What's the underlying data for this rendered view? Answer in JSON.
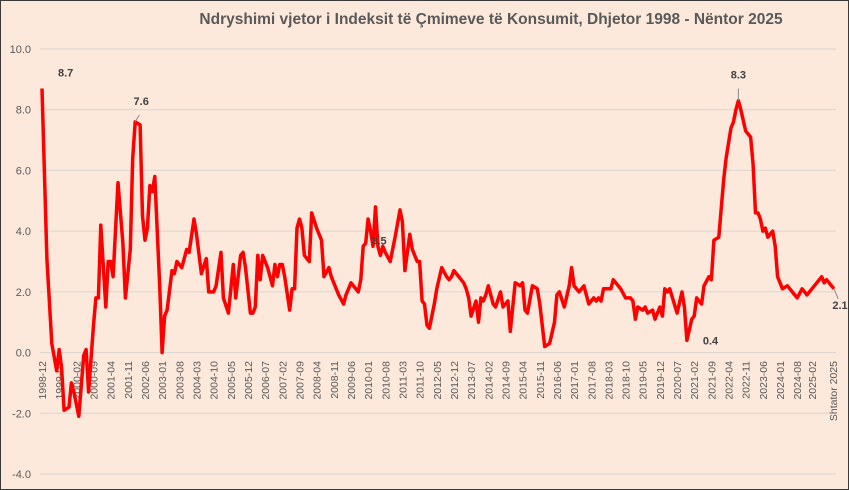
{
  "chart_data": {
    "type": "line",
    "title": "Ndryshimi vjetor i Indeksit të Çmimeve të Konsumit, Dhjetor 1998 - Nëntor 2025",
    "xlabel": "",
    "ylabel": "",
    "ylim": [
      -4.0,
      10.0
    ],
    "yticks": [
      "10.0",
      "8.0",
      "6.0",
      "4.0",
      "2.0",
      "0.0",
      "-2.0",
      "-4.0"
    ],
    "grid": "horizontal",
    "legend": "none",
    "line_color": "#ff0000",
    "background_color": "#fde9dc",
    "xticks": [
      "1998-12",
      "1999-07",
      "2000-02",
      "2000-09",
      "2001-04",
      "2001-11",
      "2002-06",
      "2003-01",
      "2003-08",
      "2004-03",
      "2004-10",
      "2005-05",
      "2005-12",
      "2006-07",
      "2007-02",
      "2007-09",
      "2008-04",
      "2008-11",
      "2009-06",
      "2010-01",
      "2010-08",
      "2011-03",
      "2011-10",
      "2012-05",
      "2012-12",
      "2013-07",
      "2014-02",
      "2014-09",
      "2015-04",
      "2015-11",
      "2016-06",
      "2017-01",
      "2017-08",
      "2018-03",
      "2018-10",
      "2019-05",
      "2019-12",
      "2020-07",
      "2021-02",
      "2021-09",
      "2022-04",
      "2022-11",
      "2023-06",
      "2024-01",
      "2024-08",
      "2025-02",
      "Shtator 2025"
    ],
    "series": [
      {
        "points": [
          [
            "1998-12",
            8.7
          ],
          [
            "1999-02",
            3.1
          ],
          [
            "1999-04",
            0.3
          ],
          [
            "1999-06",
            -0.6
          ],
          [
            "1999-07",
            0.1
          ],
          [
            "1999-08",
            -0.5
          ],
          [
            "1999-09",
            -1.9
          ],
          [
            "1999-11",
            -1.8
          ],
          [
            "1999-12",
            -1.0
          ],
          [
            "2000-01",
            -1.3
          ],
          [
            "2000-03",
            -2.1
          ],
          [
            "2000-05",
            -0.1
          ],
          [
            "2000-06",
            0.1
          ],
          [
            "2000-07",
            -1.3
          ],
          [
            "2000-09",
            0.9
          ],
          [
            "2000-10",
            1.8
          ],
          [
            "2000-11",
            1.8
          ],
          [
            "2000-12",
            4.2
          ],
          [
            "2001-02",
            1.5
          ],
          [
            "2001-03",
            3.0
          ],
          [
            "2001-04",
            3.0
          ],
          [
            "2001-05",
            2.5
          ],
          [
            "2001-07",
            5.6
          ],
          [
            "2001-09",
            3.6
          ],
          [
            "2001-10",
            1.8
          ],
          [
            "2001-12",
            3.4
          ],
          [
            "2002-01",
            6.4
          ],
          [
            "2002-02",
            7.6
          ],
          [
            "2002-04",
            7.5
          ],
          [
            "2002-05",
            4.5
          ],
          [
            "2002-06",
            3.7
          ],
          [
            "2002-07",
            4.1
          ],
          [
            "2002-08",
            5.5
          ],
          [
            "2002-09",
            5.3
          ],
          [
            "2002-10",
            5.8
          ],
          [
            "2002-12",
            2.2
          ],
          [
            "2003-01",
            0.0
          ],
          [
            "2003-02",
            1.2
          ],
          [
            "2003-03",
            1.4
          ],
          [
            "2003-05",
            2.7
          ],
          [
            "2003-06",
            2.6
          ],
          [
            "2003-07",
            3.0
          ],
          [
            "2003-09",
            2.8
          ],
          [
            "2003-11",
            3.4
          ],
          [
            "2003-12",
            3.3
          ],
          [
            "2004-02",
            4.4
          ],
          [
            "2004-03",
            3.9
          ],
          [
            "2004-05",
            2.6
          ],
          [
            "2004-07",
            3.1
          ],
          [
            "2004-08",
            2.0
          ],
          [
            "2004-10",
            2.0
          ],
          [
            "2004-11",
            2.2
          ],
          [
            "2005-01",
            3.3
          ],
          [
            "2005-02",
            1.8
          ],
          [
            "2005-04",
            1.3
          ],
          [
            "2005-06",
            2.9
          ],
          [
            "2005-07",
            1.8
          ],
          [
            "2005-09",
            3.2
          ],
          [
            "2005-10",
            3.3
          ],
          [
            "2005-11",
            2.8
          ],
          [
            "2006-01",
            1.3
          ],
          [
            "2006-02",
            1.3
          ],
          [
            "2006-03",
            1.5
          ],
          [
            "2006-04",
            3.2
          ],
          [
            "2006-05",
            2.4
          ],
          [
            "2006-06",
            3.2
          ],
          [
            "2006-08",
            2.8
          ],
          [
            "2006-10",
            2.2
          ],
          [
            "2006-11",
            2.9
          ],
          [
            "2006-12",
            2.5
          ],
          [
            "2007-01",
            2.9
          ],
          [
            "2007-02",
            2.9
          ],
          [
            "2007-03",
            2.5
          ],
          [
            "2007-05",
            1.4
          ],
          [
            "2007-06",
            2.1
          ],
          [
            "2007-07",
            2.1
          ],
          [
            "2007-08",
            4.1
          ],
          [
            "2007-09",
            4.4
          ],
          [
            "2007-10",
            4.1
          ],
          [
            "2007-11",
            3.2
          ],
          [
            "2008-01",
            3.0
          ],
          [
            "2008-02",
            4.6
          ],
          [
            "2008-04",
            4.1
          ],
          [
            "2008-06",
            3.7
          ],
          [
            "2008-07",
            2.5
          ],
          [
            "2008-09",
            2.8
          ],
          [
            "2008-10",
            2.5
          ],
          [
            "2008-12",
            2.1
          ],
          [
            "2009-01",
            1.9
          ],
          [
            "2009-03",
            1.6
          ],
          [
            "2009-04",
            1.9
          ],
          [
            "2009-06",
            2.3
          ],
          [
            "2009-07",
            2.2
          ],
          [
            "2009-09",
            2.0
          ],
          [
            "2009-10",
            2.4
          ],
          [
            "2009-11",
            3.5
          ],
          [
            "2009-12",
            3.6
          ],
          [
            "2010-01",
            4.4
          ],
          [
            "2010-02",
            4.0
          ],
          [
            "2010-03",
            3.5
          ],
          [
            "2010-04",
            4.8
          ],
          [
            "2010-05",
            3.5
          ],
          [
            "2010-06",
            3.2
          ],
          [
            "2010-07",
            3.5
          ],
          [
            "2010-08",
            3.3
          ],
          [
            "2010-10",
            3.0
          ],
          [
            "2010-12",
            3.8
          ],
          [
            "2011-02",
            4.7
          ],
          [
            "2011-03",
            4.3
          ],
          [
            "2011-04",
            2.7
          ],
          [
            "2011-06",
            3.9
          ],
          [
            "2011-07",
            3.4
          ],
          [
            "2011-09",
            3.0
          ],
          [
            "2011-10",
            3.0
          ],
          [
            "2011-11",
            1.7
          ],
          [
            "2011-12",
            1.6
          ],
          [
            "2012-01",
            0.9
          ],
          [
            "2012-02",
            0.8
          ],
          [
            "2012-04",
            1.6
          ],
          [
            "2012-05",
            2.1
          ],
          [
            "2012-07",
            2.8
          ],
          [
            "2012-09",
            2.5
          ],
          [
            "2012-10",
            2.4
          ],
          [
            "2012-11",
            2.5
          ],
          [
            "2012-12",
            2.7
          ],
          [
            "2013-02",
            2.5
          ],
          [
            "2013-04",
            2.3
          ],
          [
            "2013-05",
            2.1
          ],
          [
            "2013-06",
            1.8
          ],
          [
            "2013-07",
            1.2
          ],
          [
            "2013-09",
            1.7
          ],
          [
            "2013-10",
            1.0
          ],
          [
            "2013-11",
            1.8
          ],
          [
            "2013-12",
            1.7
          ],
          [
            "2014-01",
            1.9
          ],
          [
            "2014-02",
            2.2
          ],
          [
            "2014-04",
            1.6
          ],
          [
            "2014-05",
            1.5
          ],
          [
            "2014-07",
            2.0
          ],
          [
            "2014-08",
            1.5
          ],
          [
            "2014-10",
            1.7
          ],
          [
            "2014-11",
            0.7
          ],
          [
            "2015-01",
            2.3
          ],
          [
            "2015-03",
            2.2
          ],
          [
            "2015-04",
            2.3
          ],
          [
            "2015-05",
            1.4
          ],
          [
            "2015-06",
            1.3
          ],
          [
            "2015-08",
            2.2
          ],
          [
            "2015-10",
            2.1
          ],
          [
            "2015-11",
            1.6
          ],
          [
            "2016-01",
            0.2
          ],
          [
            "2016-03",
            0.3
          ],
          [
            "2016-05",
            1.0
          ],
          [
            "2016-06",
            1.9
          ],
          [
            "2016-07",
            2.0
          ],
          [
            "2016-09",
            1.5
          ],
          [
            "2016-11",
            2.2
          ],
          [
            "2016-12",
            2.8
          ],
          [
            "2017-01",
            2.2
          ],
          [
            "2017-03",
            2.0
          ],
          [
            "2017-05",
            2.2
          ],
          [
            "2017-07",
            1.6
          ],
          [
            "2017-09",
            1.8
          ],
          [
            "2017-10",
            1.7
          ],
          [
            "2017-11",
            1.8
          ],
          [
            "2017-12",
            1.7
          ],
          [
            "2018-01",
            2.1
          ],
          [
            "2018-02",
            2.1
          ],
          [
            "2018-04",
            2.1
          ],
          [
            "2018-05",
            2.4
          ],
          [
            "2018-06",
            2.3
          ],
          [
            "2018-08",
            2.1
          ],
          [
            "2018-10",
            1.8
          ],
          [
            "2018-12",
            1.8
          ],
          [
            "2019-01",
            1.7
          ],
          [
            "2019-02",
            1.1
          ],
          [
            "2019-03",
            1.5
          ],
          [
            "2019-05",
            1.4
          ],
          [
            "2019-06",
            1.5
          ],
          [
            "2019-07",
            1.3
          ],
          [
            "2019-09",
            1.4
          ],
          [
            "2019-10",
            1.1
          ],
          [
            "2019-12",
            1.5
          ],
          [
            "2020-01",
            1.2
          ],
          [
            "2020-02",
            2.1
          ],
          [
            "2020-03",
            2.0
          ],
          [
            "2020-04",
            2.1
          ],
          [
            "2020-07",
            1.3
          ],
          [
            "2020-09",
            2.0
          ],
          [
            "2020-10",
            1.5
          ],
          [
            "2020-11",
            0.4
          ],
          [
            "2021-01",
            1.1
          ],
          [
            "2021-02",
            1.2
          ],
          [
            "2021-03",
            1.8
          ],
          [
            "2021-04",
            1.7
          ],
          [
            "2021-05",
            1.6
          ],
          [
            "2021-06",
            2.2
          ],
          [
            "2021-08",
            2.5
          ],
          [
            "2021-09",
            2.4
          ],
          [
            "2021-10",
            3.7
          ],
          [
            "2021-12",
            3.8
          ],
          [
            "2022-02",
            5.7
          ],
          [
            "2022-03",
            6.4
          ],
          [
            "2022-05",
            7.4
          ],
          [
            "2022-06",
            7.6
          ],
          [
            "2022-07",
            8.0
          ],
          [
            "2022-08",
            8.3
          ],
          [
            "2022-09",
            8.0
          ],
          [
            "2022-11",
            7.3
          ],
          [
            "2023-01",
            7.1
          ],
          [
            "2023-02",
            6.2
          ],
          [
            "2023-03",
            4.6
          ],
          [
            "2023-04",
            4.6
          ],
          [
            "2023-05",
            4.4
          ],
          [
            "2023-06",
            4.0
          ],
          [
            "2023-07",
            4.1
          ],
          [
            "2023-08",
            3.8
          ],
          [
            "2023-10",
            4.0
          ],
          [
            "2023-11",
            3.5
          ],
          [
            "2023-12",
            2.5
          ],
          [
            "2024-02",
            2.1
          ],
          [
            "2024-04",
            2.2
          ],
          [
            "2024-06",
            2.0
          ],
          [
            "2024-08",
            1.8
          ],
          [
            "2024-10",
            2.1
          ],
          [
            "2024-12",
            1.9
          ],
          [
            "2025-02",
            2.1
          ],
          [
            "2025-04",
            2.3
          ],
          [
            "2025-06",
            2.5
          ],
          [
            "2025-07",
            2.3
          ],
          [
            "2025-08",
            2.4
          ],
          [
            "2025-09",
            2.3
          ],
          [
            "2025-11",
            2.1
          ]
        ]
      }
    ],
    "annotations": [
      {
        "x": "1998-12",
        "y": 8.7,
        "label": "8.7"
      },
      {
        "x": "2002-02",
        "y": 7.6,
        "label": "7.6"
      },
      {
        "x": "2010-03",
        "y": 3.5,
        "label": "3.5"
      },
      {
        "x": "2020-11",
        "y": 0.4,
        "label": "0.4"
      },
      {
        "x": "2022-08",
        "y": 8.3,
        "label": "8.3"
      },
      {
        "x": "2025-11",
        "y": 2.1,
        "label": "2.1"
      }
    ]
  }
}
